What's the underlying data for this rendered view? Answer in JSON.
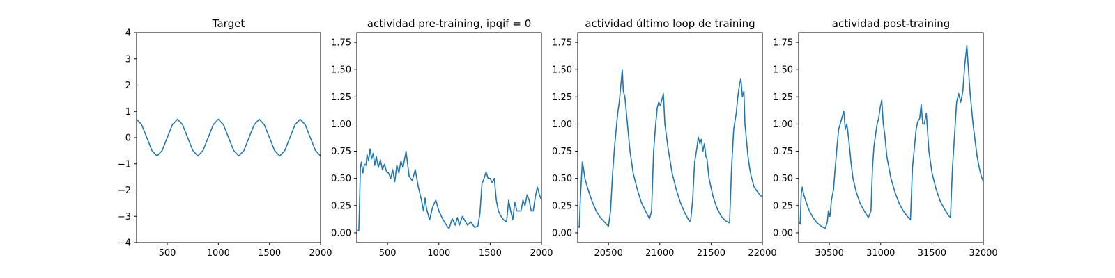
{
  "chart_data": [
    {
      "type": "line",
      "title": "Target",
      "xlabel": "",
      "ylabel": "",
      "xlim": [
        200,
        2000
      ],
      "ylim": [
        -4,
        4
      ],
      "xticks": [
        500,
        1000,
        1500,
        2000
      ],
      "xtick_labels": [
        "500",
        "1000",
        "1500",
        "2000"
      ],
      "yticks": [
        -4,
        -3,
        -2,
        -1,
        0,
        1,
        2,
        3,
        4
      ],
      "ytick_labels": [
        "−4",
        "−3",
        "−2",
        "−1",
        "0",
        "1",
        "2",
        "3",
        "4"
      ],
      "grid": false,
      "series": [
        {
          "color": "#1f77b4",
          "x": [
            200,
            250,
            300,
            350,
            400,
            450,
            500,
            550,
            600,
            650,
            700,
            750,
            800,
            850,
            900,
            950,
            1000,
            1050,
            1100,
            1150,
            1200,
            1250,
            1300,
            1350,
            1400,
            1450,
            1500,
            1550,
            1600,
            1650,
            1700,
            1750,
            1800,
            1850,
            1900,
            1950,
            2000
          ],
          "y": [
            0.7,
            0.49,
            0.0,
            -0.49,
            -0.7,
            -0.49,
            0.0,
            0.49,
            0.7,
            0.49,
            0.0,
            -0.49,
            -0.7,
            -0.49,
            0.0,
            0.49,
            0.7,
            0.49,
            0.0,
            -0.49,
            -0.7,
            -0.49,
            0.0,
            0.49,
            0.7,
            0.49,
            0.0,
            -0.49,
            -0.7,
            -0.49,
            0.0,
            0.49,
            0.7,
            0.49,
            0.0,
            -0.49,
            -0.7
          ]
        }
      ]
    },
    {
      "type": "line",
      "title": "actividad pre-training, ipqif = 0",
      "xlabel": "",
      "ylabel": "",
      "xlim": [
        200,
        2000
      ],
      "ylim": [
        -0.09,
        1.84
      ],
      "xticks": [
        500,
        1000,
        1500,
        2000
      ],
      "xtick_labels": [
        "500",
        "1000",
        "1500",
        "2000"
      ],
      "yticks": [
        0.0,
        0.25,
        0.5,
        0.75,
        1.0,
        1.25,
        1.5,
        1.75
      ],
      "ytick_labels": [
        "0.00",
        "0.25",
        "0.50",
        "0.75",
        "1.00",
        "1.25",
        "1.50",
        "1.75"
      ],
      "grid": false,
      "series": [
        {
          "color": "#1f77b4",
          "x": [
            200,
            220,
            225,
            235,
            245,
            260,
            275,
            290,
            300,
            315,
            330,
            345,
            360,
            375,
            390,
            410,
            430,
            450,
            470,
            490,
            510,
            530,
            550,
            570,
            590,
            610,
            630,
            650,
            680,
            710,
            740,
            770,
            785,
            800,
            830,
            850,
            865,
            880,
            910,
            940,
            970,
            1000,
            1040,
            1080,
            1100,
            1130,
            1160,
            1180,
            1200,
            1230,
            1260,
            1280,
            1310,
            1350,
            1380,
            1400,
            1420,
            1440,
            1460,
            1480,
            1500,
            1520,
            1540,
            1560,
            1580,
            1600,
            1630,
            1660,
            1680,
            1700,
            1720,
            1740,
            1760,
            1780,
            1800,
            1820,
            1840,
            1860,
            1880,
            1900,
            1920,
            1940,
            1960,
            1980,
            2000
          ],
          "y": [
            0.02,
            0.02,
            0.2,
            0.6,
            0.65,
            0.55,
            0.63,
            0.62,
            0.72,
            0.66,
            0.77,
            0.68,
            0.73,
            0.62,
            0.7,
            0.6,
            0.67,
            0.58,
            0.63,
            0.56,
            0.55,
            0.5,
            0.58,
            0.47,
            0.62,
            0.55,
            0.66,
            0.6,
            0.75,
            0.52,
            0.48,
            0.58,
            0.5,
            0.42,
            0.3,
            0.2,
            0.32,
            0.22,
            0.12,
            0.24,
            0.3,
            0.2,
            0.12,
            0.06,
            0.04,
            0.13,
            0.07,
            0.14,
            0.07,
            0.15,
            0.1,
            0.07,
            0.1,
            0.05,
            0.06,
            0.18,
            0.45,
            0.5,
            0.56,
            0.5,
            0.5,
            0.46,
            0.5,
            0.3,
            0.2,
            0.16,
            0.12,
            0.1,
            0.3,
            0.2,
            0.12,
            0.28,
            0.2,
            0.2,
            0.2,
            0.3,
            0.25,
            0.35,
            0.3,
            0.2,
            0.2,
            0.33,
            0.42,
            0.35,
            0.3
          ]
        }
      ]
    },
    {
      "type": "line",
      "title": "actividad último loop de training",
      "xlabel": "",
      "ylabel": "",
      "xlim": [
        20200,
        22000
      ],
      "ylim": [
        -0.09,
        1.84
      ],
      "xticks": [
        20500,
        21000,
        21500,
        22000
      ],
      "xtick_labels": [
        "20500",
        "21000",
        "21500",
        "22000"
      ],
      "yticks": [
        0.0,
        0.25,
        0.5,
        0.75,
        1.0,
        1.25,
        1.5,
        1.75
      ],
      "ytick_labels": [
        "0.00",
        "0.25",
        "0.50",
        "0.75",
        "1.00",
        "1.25",
        "1.50",
        "1.75"
      ],
      "grid": false,
      "series": [
        {
          "color": "#1f77b4",
          "x": [
            20200,
            20215,
            20225,
            20245,
            20255,
            20270,
            20300,
            20340,
            20380,
            20420,
            20460,
            20480,
            20500,
            20520,
            20540,
            20560,
            20575,
            20590,
            20605,
            20620,
            20635,
            20645,
            20660,
            20675,
            20690,
            20710,
            20740,
            20780,
            20820,
            20860,
            20900,
            20920,
            20940,
            20960,
            20975,
            20990,
            21005,
            21020,
            21035,
            21050,
            21080,
            21120,
            21160,
            21200,
            21240,
            21280,
            21300,
            21320,
            21340,
            21360,
            21375,
            21390,
            21405,
            21420,
            21435,
            21450,
            21460,
            21480,
            21520,
            21560,
            21600,
            21640,
            21680,
            21700,
            21720,
            21745,
            21760,
            21775,
            21790,
            21805,
            21820,
            21830,
            21845,
            21860,
            21875,
            21890,
            21920,
            21950,
            21975,
            22000
          ],
          "y": [
            0.06,
            0.05,
            0.3,
            0.65,
            0.6,
            0.5,
            0.4,
            0.29,
            0.2,
            0.14,
            0.1,
            0.08,
            0.06,
            0.2,
            0.55,
            0.8,
            0.95,
            1.1,
            1.2,
            1.35,
            1.5,
            1.3,
            1.25,
            1.1,
            0.95,
            0.75,
            0.55,
            0.4,
            0.28,
            0.2,
            0.13,
            0.2,
            0.75,
            1.0,
            1.15,
            1.2,
            1.17,
            1.22,
            1.28,
            1.0,
            0.78,
            0.55,
            0.4,
            0.28,
            0.19,
            0.12,
            0.1,
            0.3,
            0.65,
            0.77,
            0.88,
            0.82,
            0.86,
            0.75,
            0.82,
            0.7,
            0.68,
            0.5,
            0.33,
            0.22,
            0.15,
            0.11,
            0.09,
            0.6,
            0.95,
            1.1,
            1.25,
            1.35,
            1.42,
            1.25,
            1.3,
            1.0,
            0.85,
            0.7,
            0.6,
            0.52,
            0.42,
            0.38,
            0.35,
            0.33
          ]
        }
      ]
    },
    {
      "type": "line",
      "title": "actividad post-training",
      "xlabel": "",
      "ylabel": "",
      "xlim": [
        30200,
        32000
      ],
      "ylim": [
        -0.09,
        1.84
      ],
      "xticks": [
        30500,
        31000,
        31500,
        32000
      ],
      "xtick_labels": [
        "30500",
        "31000",
        "31500",
        "32000"
      ],
      "yticks": [
        0.0,
        0.25,
        0.5,
        0.75,
        1.0,
        1.25,
        1.5,
        1.75
      ],
      "ytick_labels": [
        "0.00",
        "0.25",
        "0.50",
        "0.75",
        "1.00",
        "1.25",
        "1.50",
        "1.75"
      ],
      "grid": false,
      "series": [
        {
          "color": "#1f77b4",
          "x": [
            30200,
            30215,
            30225,
            30235,
            30250,
            30275,
            30300,
            30340,
            30380,
            30420,
            30460,
            30480,
            30490,
            30505,
            30520,
            30540,
            30555,
            30575,
            30590,
            30605,
            30620,
            30640,
            30655,
            30670,
            30690,
            30710,
            30730,
            30760,
            30800,
            30840,
            30880,
            30905,
            30920,
            30935,
            30950,
            30965,
            30980,
            30995,
            31010,
            31025,
            31040,
            31060,
            31100,
            31140,
            31180,
            31220,
            31260,
            31290,
            31310,
            31330,
            31345,
            31360,
            31380,
            31395,
            31410,
            31425,
            31445,
            31470,
            31500,
            31540,
            31580,
            31620,
            31660,
            31680,
            31700,
            31720,
            31740,
            31760,
            31780,
            31800,
            31820,
            31840,
            31855,
            31870,
            31885,
            31900,
            31920,
            31940,
            31960,
            31980,
            32000
          ],
          "y": [
            0.1,
            0.08,
            0.35,
            0.42,
            0.35,
            0.28,
            0.21,
            0.14,
            0.09,
            0.06,
            0.04,
            0.1,
            0.2,
            0.15,
            0.3,
            0.4,
            0.58,
            0.8,
            0.95,
            1.0,
            1.05,
            1.12,
            0.95,
            1.0,
            0.85,
            0.65,
            0.5,
            0.38,
            0.27,
            0.2,
            0.14,
            0.2,
            0.6,
            0.8,
            0.9,
            1.0,
            1.05,
            1.15,
            1.22,
            1.0,
            0.9,
            0.7,
            0.5,
            0.37,
            0.27,
            0.2,
            0.15,
            0.12,
            0.6,
            0.8,
            0.95,
            1.02,
            1.05,
            1.18,
            1.0,
            1.0,
            1.1,
            0.75,
            0.55,
            0.4,
            0.29,
            0.22,
            0.16,
            0.14,
            0.6,
            0.9,
            1.2,
            1.28,
            1.2,
            1.3,
            1.55,
            1.72,
            1.5,
            1.3,
            1.15,
            1.0,
            0.85,
            0.7,
            0.6,
            0.52,
            0.47
          ]
        }
      ]
    }
  ]
}
